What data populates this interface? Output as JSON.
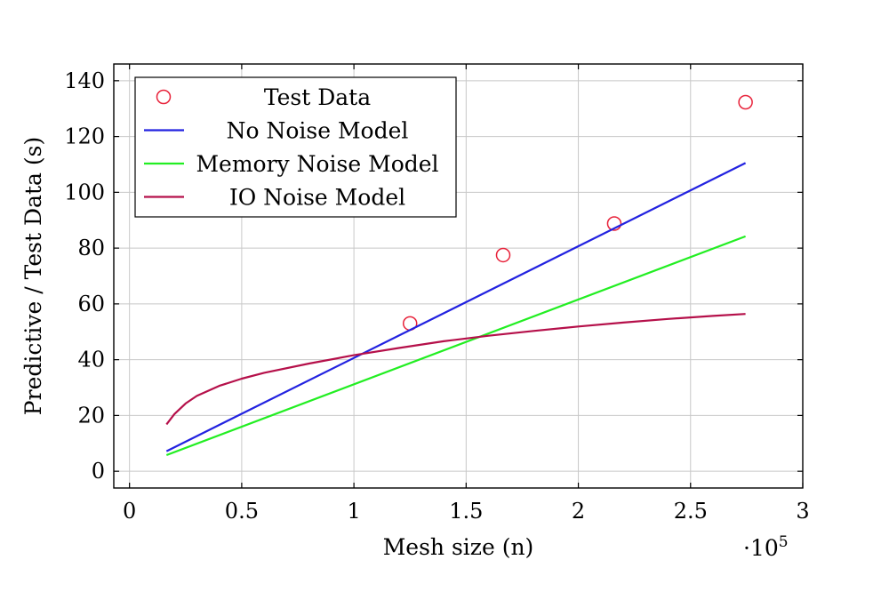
{
  "chart_data": {
    "type": "line",
    "xlabel": "Mesh size (n)",
    "ylabel": "Predictive / Test Data (s)",
    "x_exponent_label": "·10",
    "x_exponent_power": "5",
    "xlim": [
      -0.07,
      3.0
    ],
    "ylim": [
      -6,
      146
    ],
    "x_ticks": [
      0,
      0.5,
      1,
      1.5,
      2,
      2.5,
      3
    ],
    "x_tick_labels": [
      "0",
      "0.5",
      "1",
      "1.5",
      "2",
      "2.5",
      "3"
    ],
    "y_ticks": [
      0,
      20,
      40,
      60,
      80,
      100,
      120,
      140
    ],
    "y_tick_labels": [
      "0",
      "20",
      "40",
      "60",
      "80",
      "100",
      "120",
      "140"
    ],
    "grid": true,
    "legend_position": "top-left",
    "series": [
      {
        "name": "Test Data",
        "kind": "scatter",
        "color": "#e8223a",
        "x": [
          1.25,
          1.665,
          2.16,
          2.745
        ],
        "y": [
          53,
          77.5,
          88.8,
          132.3
        ]
      },
      {
        "name": "No Noise Model",
        "kind": "line",
        "color": "#2222e0",
        "x": [
          0.165,
          2.745
        ],
        "y": [
          7.2,
          110.5
        ]
      },
      {
        "name": "Memory Noise Model",
        "kind": "line",
        "color": "#22ee22",
        "x": [
          0.165,
          2.745
        ],
        "y": [
          5.8,
          84.2
        ]
      },
      {
        "name": "IO Noise Model",
        "kind": "line",
        "color": "#b5104a",
        "x": [
          0.165,
          0.2,
          0.25,
          0.3,
          0.4,
          0.5,
          0.6,
          0.8,
          1.0,
          1.2,
          1.4,
          1.6,
          1.8,
          2.0,
          2.2,
          2.4,
          2.6,
          2.745
        ],
        "y": [
          16.8,
          20.5,
          24.3,
          27.0,
          30.6,
          33.2,
          35.3,
          38.6,
          41.6,
          44.2,
          46.6,
          48.6,
          50.3,
          51.9,
          53.3,
          54.6,
          55.7,
          56.4
        ]
      }
    ]
  }
}
